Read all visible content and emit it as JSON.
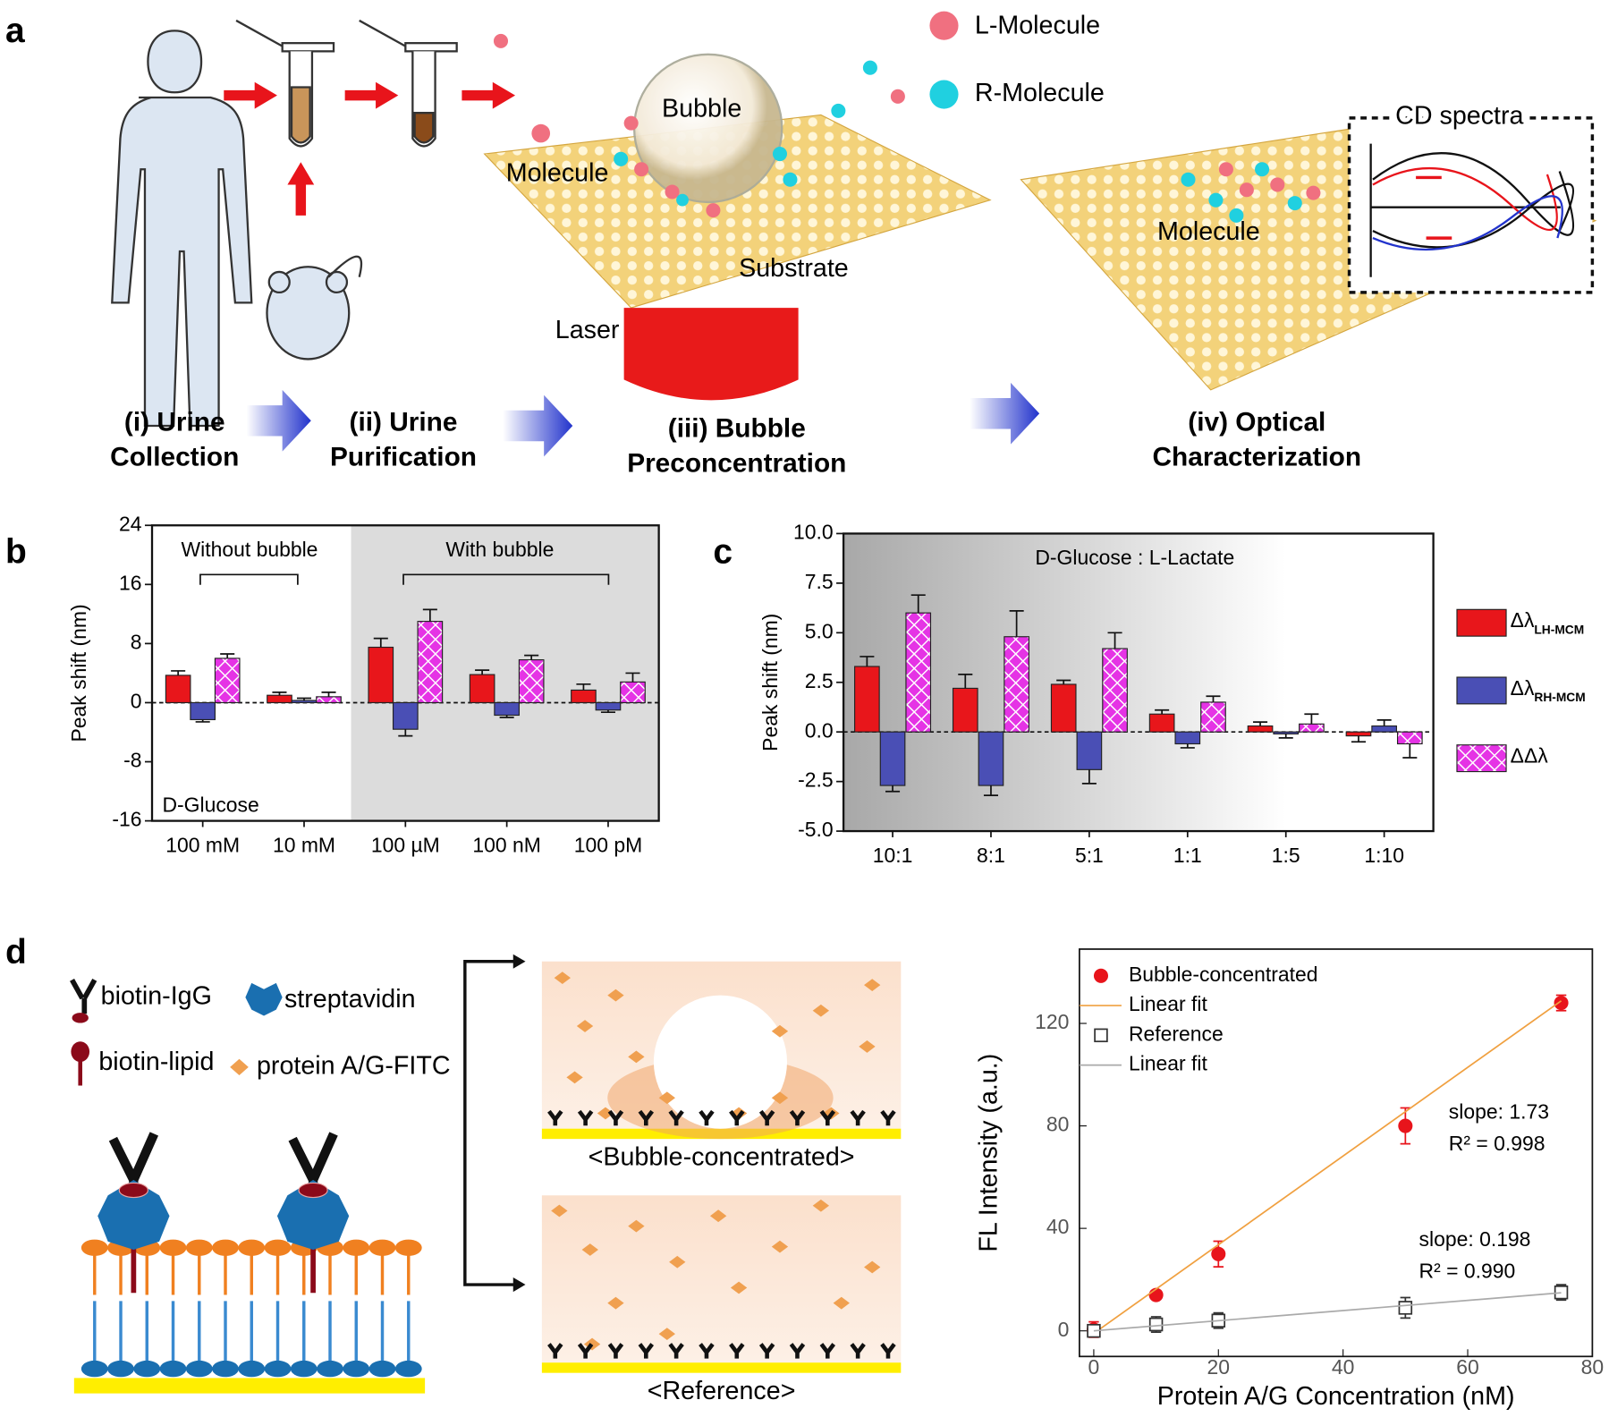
{
  "panel_labels": [
    "a",
    "b",
    "c",
    "d"
  ],
  "panel_a": {
    "legend": [
      "L-Molecule",
      "R-Molecule"
    ],
    "labels": [
      "Bubble",
      "Molecule",
      "Substrate",
      "Laser",
      "Molecule",
      "CD spectra"
    ],
    "steps": [
      [
        "(i) Urine",
        "Collection"
      ],
      [
        "(ii) Urine",
        "Purification"
      ],
      [
        "(iii) Bubble",
        "Preconcentration"
      ],
      [
        "(iv) Optical",
        "Characterization"
      ]
    ]
  },
  "chart_data": [
    {
      "type": "bar",
      "ylabel": "Peak shift (nm)",
      "categories": [
        "100 mM",
        "10 mM",
        "100 µM",
        "100 nM",
        "100 pM"
      ],
      "series": [
        {
          "color": "#e8161b",
          "values": [
            3.7,
            1.0,
            7.5,
            3.8,
            1.7
          ],
          "errors": [
            0.6,
            0.4,
            1.2,
            0.6,
            0.8
          ]
        },
        {
          "color": "#4a4fb5",
          "values": [
            -2.3,
            0.3,
            -3.6,
            -1.7,
            -1.0
          ],
          "errors": [
            0.3,
            0.3,
            0.9,
            0.3,
            0.3
          ]
        },
        {
          "color": "#e533e5",
          "pattern": "crosshatch",
          "values": [
            6.0,
            0.8,
            11.0,
            5.8,
            2.8
          ],
          "errors": [
            0.6,
            0.6,
            1.6,
            0.6,
            1.2
          ]
        }
      ],
      "ylim": [
        -16,
        24
      ],
      "yticks": [
        -16,
        -8,
        0,
        8,
        16,
        24
      ],
      "annotations": [
        "Without bubble",
        "With bubble",
        "D-Glucose"
      ]
    },
    {
      "type": "bar",
      "ylabel": "Peak shift (nm)",
      "categories": [
        "10:1",
        "8:1",
        "5:1",
        "1:1",
        "1:5",
        "1:10"
      ],
      "series": [
        {
          "name": "Δλ",
          "subscript": "LH-MCM",
          "color": "#e8161b",
          "values": [
            3.3,
            2.2,
            2.4,
            0.9,
            0.3,
            -0.2
          ],
          "errors": [
            0.5,
            0.7,
            0.2,
            0.2,
            0.2,
            0.3
          ]
        },
        {
          "name": "Δλ",
          "subscript": "RH-MCM",
          "color": "#4a4fb5",
          "values": [
            -2.7,
            -2.7,
            -1.9,
            -0.6,
            -0.1,
            0.3
          ],
          "errors": [
            0.3,
            0.5,
            0.7,
            0.2,
            0.2,
            0.3
          ]
        },
        {
          "name": "ΔΔλ",
          "color": "#e533e5",
          "pattern": "crosshatch",
          "values": [
            6.0,
            4.8,
            4.2,
            1.5,
            0.4,
            -0.6
          ],
          "errors": [
            0.9,
            1.3,
            0.8,
            0.3,
            0.5,
            0.7
          ]
        }
      ],
      "ylim": [
        -5,
        10
      ],
      "yticks": [
        {
          "value": -5,
          "label": "-5.0"
        },
        -2.5,
        {
          "value": 0,
          "label": "0.0"
        },
        2.5,
        {
          "value": 5,
          "label": "5.0"
        },
        7.5,
        {
          "value": 10,
          "label": "10.0"
        }
      ],
      "annotations": [
        "D-Glucose : L-Lactate"
      ]
    },
    {
      "type": "scatter",
      "xlabel": "Protein A/G Concentration (nM)",
      "ylabel": "FL Intensity (a.u.)",
      "series": [
        {
          "name": "Bubble-concentrated",
          "color": "#e8141b",
          "marker": "circle",
          "x": [
            0,
            10,
            20,
            50,
            75
          ],
          "values": [
            0.5,
            14,
            30,
            80,
            128
          ],
          "errors": [
            3,
            1.5,
            5,
            7,
            3
          ]
        },
        {
          "name": "Linear fit",
          "color": "#f0a040",
          "type": "line",
          "x": [
            0,
            75
          ],
          "values": [
            -1,
            128.8
          ]
        },
        {
          "name": "Reference",
          "color": "#333333",
          "marker": "square-open",
          "x": [
            0,
            10,
            20,
            50,
            75
          ],
          "values": [
            0,
            2.5,
            4,
            9,
            15
          ],
          "errors": [
            2,
            3,
            3,
            4,
            3
          ]
        },
        {
          "name": "Linear fit",
          "color": "#aaaaaa",
          "type": "line",
          "x": [
            0,
            75
          ],
          "values": [
            0,
            14.85
          ]
        }
      ],
      "xlim": [
        -2.3,
        80
      ],
      "xticks": [
        0,
        20,
        40,
        60,
        80
      ],
      "ylim": [
        -10,
        149
      ],
      "yticks": [
        0,
        40,
        80,
        120
      ],
      "annotations": [
        "slope: 1.73",
        "R² = 0.998",
        "slope: 0.198",
        "R² = 0.990"
      ]
    }
  ],
  "panel_d": {
    "legend": [
      "biotin-IgG",
      "streptavidin",
      "biotin-lipid",
      "protein A/G-FITC"
    ],
    "captions": [
      "<Bubble-concentrated>",
      "<Reference>"
    ]
  }
}
